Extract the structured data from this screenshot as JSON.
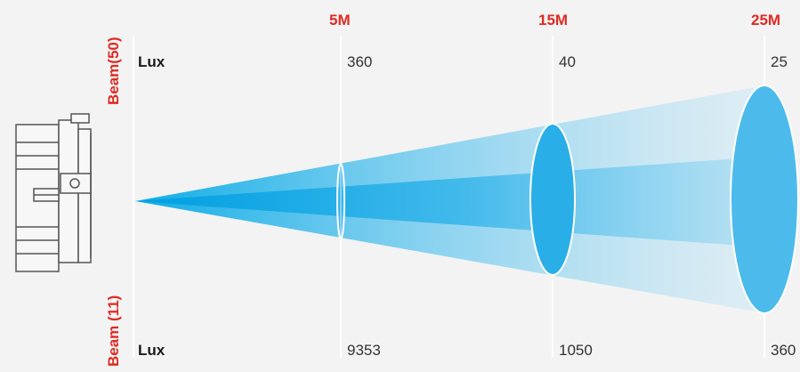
{
  "colors": {
    "accent_red": "#e02a22",
    "beam_blue": "#00a8e6",
    "background": "#f3f3f3"
  },
  "icons": {
    "fixture": "light-fixture-icon"
  },
  "beam_labels": {
    "top": "Beam(50)",
    "bottom": "Beam (11)"
  },
  "lux_labels": {
    "top": "Lux",
    "bottom": "Lux"
  },
  "distances": [
    {
      "label": "5M",
      "lux_top": "360",
      "lux_bottom": "9353"
    },
    {
      "label": "15M",
      "lux_top": "40",
      "lux_bottom": "1050"
    },
    {
      "label": "25M",
      "lux_top": "25",
      "lux_bottom": "360"
    }
  ]
}
